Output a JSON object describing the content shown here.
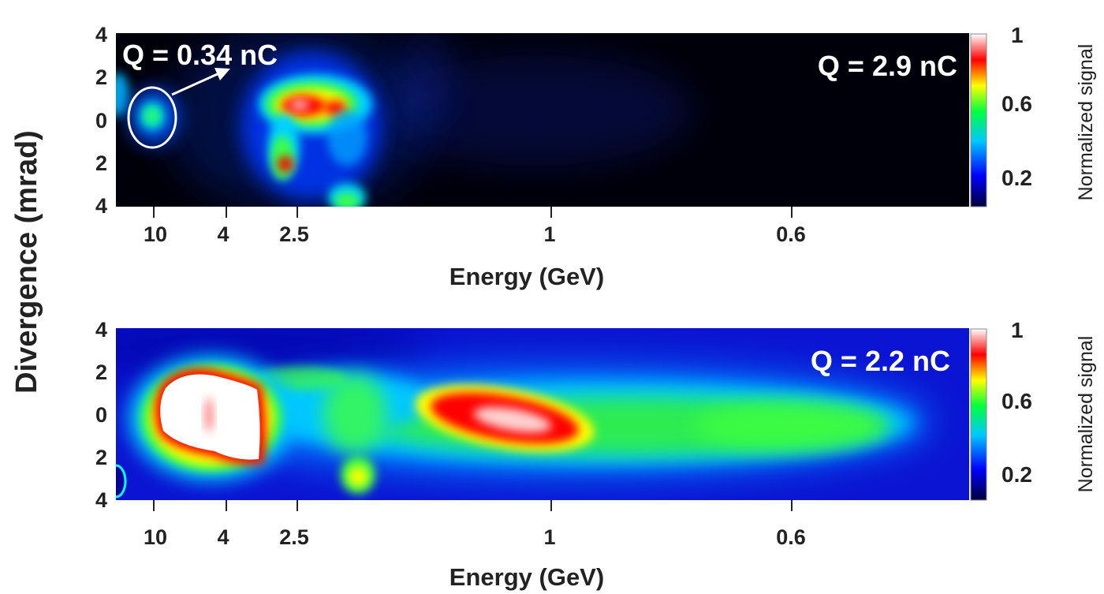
{
  "figure": {
    "ylabel": "Divergence (mrad)",
    "colorbar": {
      "label": "Normalized signal",
      "ticks": [
        "1",
        "0.6",
        "0.2"
      ],
      "colormap": [
        "#00003a",
        "#0000ff",
        "#00c8ff",
        "#00ff40",
        "#ffff00",
        "#ff0000",
        "#ffffff"
      ]
    }
  },
  "chart_data": [
    {
      "type": "heatmap",
      "panel": "top",
      "xlabel": "Energy (GeV)",
      "ylabel": "Divergence (mrad)",
      "x_ticks": [
        "10",
        "4",
        "2.5",
        "1",
        "0.6"
      ],
      "y_ticks": [
        "4",
        "2",
        "0",
        "2",
        "4"
      ],
      "ylim": [
        -4,
        4
      ],
      "annotations": [
        "Q = 2.9 nC",
        "Q = 0.34 nC"
      ],
      "background": "#00000a",
      "features": [
        {
          "energy_gev": 10,
          "divergence_mrad": 0.2,
          "intensity": 0.45
        },
        {
          "energy_gev": 2.4,
          "divergence_mrad": 0.7,
          "intensity": 0.95
        },
        {
          "energy_gev": 2.1,
          "divergence_mrad": 0.6,
          "intensity": 0.85
        },
        {
          "energy_gev": 2.5,
          "divergence_mrad": -2.0,
          "intensity": 0.8
        },
        {
          "energy_gev": 2.5,
          "divergence_mrad": -0.8,
          "intensity": 0.5
        },
        {
          "energy_gev": 2.0,
          "divergence_mrad": -3.8,
          "intensity": 0.45
        },
        {
          "energy_gev": 1.0,
          "divergence_mrad": 0.3,
          "intensity": 0.12
        }
      ]
    },
    {
      "type": "heatmap",
      "panel": "bottom",
      "xlabel": "Energy (GeV)",
      "ylabel": "Divergence (mrad)",
      "x_ticks": [
        "10",
        "4",
        "2.5",
        "1",
        "0.6"
      ],
      "y_ticks": [
        "4",
        "2",
        "0",
        "2",
        "4"
      ],
      "ylim": [
        -4,
        4
      ],
      "annotations": [
        "Q = 2.2 nC"
      ],
      "background": "#0a14d2",
      "features": [
        {
          "energy_gev": 5,
          "divergence_mrad": 0.0,
          "intensity": 1.0
        },
        {
          "energy_gev": 1.15,
          "divergence_mrad": 0.2,
          "intensity": 0.95
        },
        {
          "energy_gev": 2.0,
          "divergence_mrad": -3.0,
          "intensity": 0.65
        },
        {
          "energy_gev": 1.8,
          "divergence_mrad": 0.3,
          "intensity": 0.45
        },
        {
          "energy_gev": 0.7,
          "divergence_mrad": 0.0,
          "intensity": 0.45
        },
        {
          "energy_gev": 2.6,
          "divergence_mrad": 1.2,
          "intensity": 0.5
        }
      ]
    }
  ]
}
